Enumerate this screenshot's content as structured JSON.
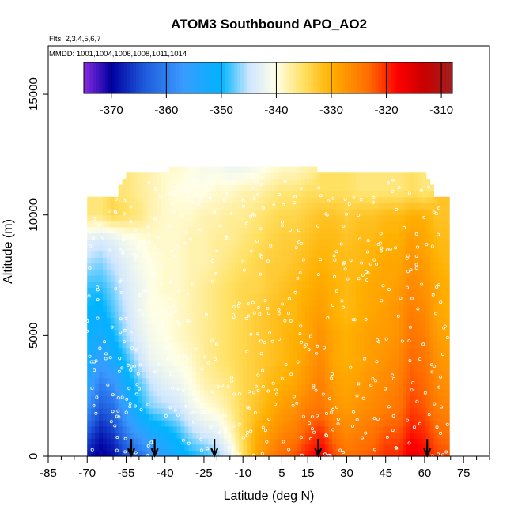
{
  "chart_data": {
    "type": "heatmap",
    "title": "ATOM3 Southbound APO_AO2",
    "subtitle_flights": "Flts: 2,3,4,5,6,7",
    "subtitle_dates": "MMDD: 1001,1004,1006,1008,1011,1014",
    "xlabel": "Latitude (deg N)",
    "ylabel": "Altitude (m)",
    "xlim": [
      -85,
      85
    ],
    "ylim": [
      0,
      17000
    ],
    "x_ticks": [
      -85,
      -70,
      -55,
      -40,
      -25,
      -10,
      5,
      15,
      30,
      45,
      60,
      75
    ],
    "x_minor_ticks": [
      -80,
      -75,
      -65,
      -60,
      -50,
      -45,
      -35,
      -30,
      -20,
      -15,
      -5,
      0,
      10,
      20,
      25,
      35,
      40,
      50,
      55,
      65,
      70,
      80,
      85
    ],
    "y_ticks": [
      0,
      5000,
      10000,
      15000
    ],
    "colorbar": {
      "range": [
        -375,
        -308
      ],
      "ticks": [
        -370,
        -360,
        -350,
        -340,
        -330,
        -320,
        -310
      ],
      "colors": [
        "#8a2be2",
        "#0000a0",
        "#1e5adc",
        "#3a9bff",
        "#00b4ff",
        "#cfe6ff",
        "#ffffe6",
        "#ffe060",
        "#ffb000",
        "#ff6a00",
        "#ff0000",
        "#c80000",
        "#a02020"
      ],
      "stops": [
        -375,
        -370,
        -364,
        -357,
        -350,
        -345,
        -340,
        -335,
        -330,
        -323,
        -318,
        -313,
        -308
      ]
    },
    "arrow_latitudes": [
      -53,
      -44,
      -21,
      19,
      61
    ],
    "field_description_columns": {
      "latitude": [
        -70,
        -65,
        -60,
        -55,
        -50,
        -45,
        -40,
        -35,
        -30,
        -25,
        -20,
        -15,
        -10,
        -5,
        0,
        5,
        10,
        15,
        20,
        25,
        30,
        35,
        40,
        45,
        50,
        55,
        60,
        65,
        70
      ],
      "altitude": [
        0,
        1000,
        2000,
        3000,
        4000,
        5000,
        6000,
        7000,
        8000,
        9000,
        10000,
        11000,
        12000
      ],
      "apo_ao2": [
        [
          -368,
          -371,
          -369,
          -365,
          -362,
          -358,
          -355,
          -352,
          -350,
          -349,
          -347,
          -343,
          -335,
          -329,
          -326,
          -323,
          -322,
          -319,
          -317,
          -321,
          -324,
          -323,
          -322,
          -320,
          -320,
          -316,
          -318,
          -321,
          -322
        ],
        [
          -364,
          -368,
          -366,
          -360,
          -356,
          -353,
          -351,
          -349,
          -346,
          -344,
          -343,
          -339,
          -334,
          -330,
          -328,
          -326,
          -325,
          -322,
          -320,
          -324,
          -326,
          -325,
          -324,
          -322,
          -322,
          -319,
          -320,
          -323,
          -324
        ],
        [
          -358,
          -364,
          -362,
          -355,
          -350,
          -347,
          -346,
          -345,
          -342,
          -340,
          -339,
          -337,
          -334,
          -332,
          -330,
          -328,
          -327,
          -325,
          -324,
          -327,
          -328,
          -327,
          -326,
          -325,
          -324,
          -321,
          -322,
          -325,
          -326
        ],
        [
          -354,
          -360,
          -358,
          -352,
          -348,
          -345,
          -343,
          -342,
          -340,
          -338,
          -337,
          -336,
          -334,
          -333,
          -331,
          -330,
          -329,
          -327,
          -325,
          -328,
          -329,
          -328,
          -327,
          -326,
          -325,
          -322,
          -323,
          -326,
          -327
        ],
        [
          -352,
          -356,
          -353,
          -349,
          -345,
          -342,
          -341,
          -340,
          -339,
          -337,
          -336,
          -335,
          -334,
          -333,
          -332,
          -331,
          -330,
          -328,
          -326,
          -329,
          -330,
          -329,
          -328,
          -327,
          -326,
          -323,
          -324,
          -327,
          -328
        ],
        [
          -351,
          -353,
          -350,
          -346,
          -343,
          -341,
          -340,
          -339,
          -338,
          -337,
          -336,
          -335,
          -334,
          -333,
          -332,
          -331,
          -330,
          -329,
          -327,
          -329,
          -330,
          -329,
          -328,
          -328,
          -327,
          -324,
          -325,
          -328,
          -329
        ],
        [
          -350,
          -351,
          -348,
          -345,
          -342,
          -340,
          -340,
          -339,
          -338,
          -337,
          -336,
          -335,
          -334,
          -333,
          -332,
          -331,
          -331,
          -329,
          -328,
          -330,
          -331,
          -330,
          -329,
          -328,
          -327,
          -325,
          -326,
          -329,
          -330
        ],
        [
          -349,
          -349,
          -347,
          -344,
          -342,
          -340,
          -339,
          -339,
          -338,
          -337,
          -336,
          -335,
          -334,
          -334,
          -333,
          -332,
          -331,
          -330,
          -329,
          -330,
          -331,
          -330,
          -329,
          -329,
          -328,
          -326,
          -327,
          -329,
          -330
        ],
        [
          -346,
          -347,
          -345,
          -343,
          -341,
          -340,
          -339,
          -339,
          -338,
          -338,
          -337,
          -336,
          -335,
          -334,
          -333,
          -333,
          -332,
          -331,
          -330,
          -331,
          -331,
          -331,
          -330,
          -329,
          -329,
          -327,
          -328,
          -330,
          -331
        ],
        [
          -343,
          -344,
          -343,
          -341,
          -340,
          -339,
          -339,
          -339,
          -338,
          -338,
          -337,
          -337,
          -336,
          -335,
          -334,
          -333,
          -333,
          -332,
          -331,
          -331,
          -332,
          -331,
          -331,
          -330,
          -330,
          -328,
          -329,
          -331,
          -331
        ],
        [
          -336,
          -336,
          -334,
          -335,
          -336,
          -338,
          -339,
          -339,
          -339,
          -338,
          -338,
          -337,
          -337,
          -336,
          -335,
          -334,
          -334,
          -333,
          -332,
          -332,
          -333,
          -332,
          -332,
          -331,
          -331,
          -330,
          -330,
          -332,
          -332
        ],
        [
          null,
          null,
          null,
          -336,
          -337,
          -338,
          -339,
          -340,
          -340,
          -340,
          -339,
          -339,
          -338,
          -338,
          -337,
          -336,
          -336,
          -335,
          -335,
          -335,
          -335,
          -336,
          -336,
          -336,
          -336,
          -335,
          -336,
          null,
          null
        ],
        [
          null,
          null,
          null,
          null,
          null,
          null,
          null,
          -339,
          -340,
          -341,
          -341,
          -342,
          -342,
          -341,
          -340,
          -339,
          -339,
          -338,
          null,
          null,
          null,
          null,
          null,
          null,
          null,
          null,
          null,
          null,
          null
        ]
      ]
    }
  }
}
